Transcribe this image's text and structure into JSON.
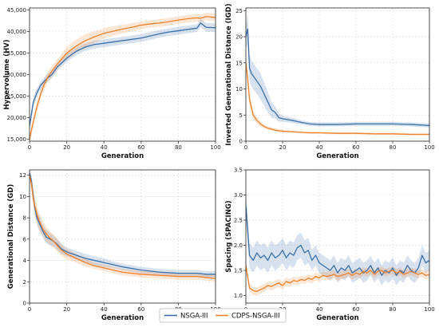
{
  "legend": {
    "placement": "bottom-center",
    "entries": [
      {
        "name": "NSGA-III",
        "color": "#3a6fa8"
      },
      {
        "name": "CDPS-NSGA-III",
        "color": "#f0822c"
      }
    ]
  },
  "chart_data": [
    {
      "id": "hv",
      "type": "line",
      "title": "",
      "xlabel": "Generation",
      "ylabel": "Hypervolume (HV)",
      "xlim": [
        0,
        100
      ],
      "ylim": [
        14500,
        45500
      ],
      "xticks": [
        0,
        20,
        40,
        60,
        80,
        100
      ],
      "yticks": [
        15000,
        20000,
        25000,
        30000,
        35000,
        40000,
        45000
      ],
      "ytick_labels": [
        "15,000",
        "20,000",
        "25,000",
        "30,000",
        "35,000",
        "40,000",
        "45,000"
      ],
      "grid": true,
      "x": [
        0,
        2,
        4,
        6,
        8,
        10,
        12,
        15,
        18,
        20,
        25,
        30,
        35,
        40,
        45,
        50,
        55,
        60,
        65,
        70,
        75,
        80,
        85,
        90,
        92,
        95,
        100
      ],
      "series": [
        {
          "name": "NSGA-III",
          "color": "#3a6fa8",
          "values": [
            18000,
            23500,
            25800,
            27500,
            28500,
            29300,
            30000,
            31800,
            33000,
            33800,
            35400,
            36400,
            37000,
            37300,
            37600,
            37900,
            38200,
            38500,
            39000,
            39500,
            39900,
            40200,
            40500,
            40800,
            42000,
            41000,
            40900
          ],
          "band": [
            1200,
            1200,
            1000,
            900,
            900,
            900,
            900,
            900,
            900,
            900,
            900,
            900,
            900,
            900,
            900,
            900,
            900,
            900,
            900,
            900,
            900,
            900,
            900,
            900,
            1000,
            1000,
            1000
          ]
        },
        {
          "name": "CDPS-NSGA-III",
          "color": "#f0822c",
          "values": [
            15000,
            19000,
            22500,
            25500,
            27800,
            29500,
            30800,
            32500,
            34000,
            35000,
            36600,
            37900,
            38800,
            39600,
            40100,
            40600,
            41000,
            41500,
            41800,
            42000,
            42300,
            42700,
            43000,
            43200,
            43100,
            43500,
            43300
          ],
          "band": [
            1000,
            1200,
            1200,
            1200,
            1200,
            1200,
            1200,
            1200,
            1200,
            1500,
            1500,
            1500,
            1300,
            1200,
            1100,
            1000,
            1000,
            900,
            900,
            900,
            900,
            900,
            900,
            900,
            900,
            900,
            900
          ]
        }
      ]
    },
    {
      "id": "igd",
      "type": "line",
      "title": "",
      "xlabel": "Generation",
      "ylabel": "Inverted Generational Distance (IGD)",
      "xlim": [
        0,
        100
      ],
      "ylim": [
        0,
        25.5
      ],
      "xticks": [
        0,
        20,
        40,
        60,
        80,
        100
      ],
      "yticks": [
        0,
        5,
        10,
        15,
        20,
        25
      ],
      "ytick_labels": [
        "0",
        "5",
        "10",
        "15",
        "20",
        "25"
      ],
      "grid": true,
      "x": [
        0,
        1,
        2,
        3,
        4,
        5,
        6,
        8,
        10,
        12,
        14,
        16,
        18,
        20,
        25,
        30,
        35,
        40,
        50,
        60,
        70,
        80,
        90,
        100
      ],
      "series": [
        {
          "name": "NSGA-III",
          "color": "#3a6fa8",
          "values": [
            20,
            21.5,
            14,
            13,
            12.5,
            12,
            11.5,
            10.5,
            9,
            7.5,
            6,
            5.5,
            4.5,
            4.3,
            4,
            3.6,
            3.3,
            3.2,
            3.2,
            3.3,
            3.3,
            3.3,
            3.2,
            3
          ],
          "band": [
            2,
            3,
            2.5,
            2.5,
            2.5,
            2.5,
            2.5,
            2.5,
            2.2,
            2,
            1.5,
            1.2,
            0.8,
            0.6,
            0.5,
            0.4,
            0.4,
            0.4,
            0.4,
            0.4,
            0.4,
            0.4,
            0.4,
            0.4
          ]
        },
        {
          "name": "CDPS-NSGA-III",
          "color": "#f0822c",
          "values": [
            15,
            12,
            8,
            6.5,
            5,
            4.5,
            4,
            3.3,
            2.8,
            2.5,
            2.3,
            2.1,
            2,
            1.9,
            1.8,
            1.7,
            1.6,
            1.6,
            1.5,
            1.5,
            1.4,
            1.4,
            1.3,
            1.3
          ],
          "band": [
            1.5,
            1.5,
            1.2,
            1,
            0.8,
            0.7,
            0.6,
            0.5,
            0.4,
            0.3,
            0.3,
            0.3,
            0.3,
            0.3,
            0.2,
            0.2,
            0.2,
            0.2,
            0.2,
            0.2,
            0.2,
            0.2,
            0.2,
            0.2
          ]
        }
      ]
    },
    {
      "id": "gd",
      "type": "line",
      "title": "",
      "xlabel": "Generation",
      "ylabel": "Generational Distance (GD)",
      "xlim": [
        0,
        100
      ],
      "ylim": [
        0,
        12.5
      ],
      "xticks": [
        0,
        20,
        40,
        60,
        80,
        100
      ],
      "yticks": [
        0,
        2,
        4,
        6,
        8,
        10,
        12
      ],
      "ytick_labels": [
        "0",
        "2",
        "4",
        "6",
        "8",
        "10",
        "12"
      ],
      "grid": true,
      "x": [
        0,
        1,
        2,
        3,
        4,
        5,
        7,
        9,
        11,
        13,
        15,
        17,
        20,
        25,
        30,
        35,
        40,
        45,
        50,
        60,
        70,
        80,
        90,
        95,
        100
      ],
      "series": [
        {
          "name": "NSGA-III",
          "color": "#3a6fa8",
          "values": [
            12.2,
            11.5,
            10,
            8.8,
            8,
            7.6,
            6.8,
            6.2,
            6,
            5.8,
            5.5,
            5.1,
            4.8,
            4.5,
            4.2,
            4,
            3.8,
            3.6,
            3.4,
            3.1,
            2.9,
            2.8,
            2.8,
            2.7,
            2.7
          ],
          "band": [
            0.4,
            0.6,
            0.7,
            0.7,
            0.7,
            0.7,
            0.6,
            0.6,
            0.6,
            0.5,
            0.5,
            0.5,
            0.4,
            0.4,
            0.4,
            0.4,
            0.4,
            0.3,
            0.3,
            0.3,
            0.3,
            0.3,
            0.3,
            0.3,
            0.3
          ]
        },
        {
          "name": "CDPS-NSGA-III",
          "color": "#f0822c",
          "values": [
            12,
            11.2,
            9.8,
            9,
            8.3,
            7.8,
            7,
            6.5,
            6.1,
            5.8,
            5.4,
            5,
            4.6,
            4.2,
            3.8,
            3.5,
            3.3,
            3.1,
            2.9,
            2.7,
            2.6,
            2.5,
            2.5,
            2.4,
            2.3
          ],
          "band": [
            0.4,
            0.7,
            0.8,
            0.8,
            0.8,
            0.8,
            0.7,
            0.7,
            0.6,
            0.6,
            0.6,
            0.5,
            0.5,
            0.4,
            0.4,
            0.3,
            0.3,
            0.3,
            0.3,
            0.3,
            0.3,
            0.3,
            0.3,
            0.3,
            0.3
          ]
        }
      ]
    },
    {
      "id": "spacing",
      "type": "line",
      "title": "",
      "xlabel": "Generation",
      "ylabel": "Spacing (SPACING)",
      "xlim": [
        0,
        100
      ],
      "ylim": [
        0.85,
        3.5
      ],
      "xticks": [
        0,
        20,
        40,
        60,
        80,
        100
      ],
      "yticks": [
        1.0,
        1.5,
        2.0,
        2.5,
        3.0,
        3.5
      ],
      "ytick_labels": [
        "1.0",
        "1.5",
        "2.0",
        "2.5",
        "3.0",
        "3.5"
      ],
      "grid": true,
      "x": [
        0,
        2,
        4,
        6,
        8,
        10,
        12,
        14,
        16,
        18,
        20,
        22,
        24,
        26,
        28,
        30,
        32,
        34,
        36,
        38,
        40,
        42,
        44,
        46,
        48,
        50,
        52,
        54,
        56,
        58,
        60,
        62,
        64,
        66,
        68,
        70,
        72,
        74,
        76,
        78,
        80,
        82,
        84,
        86,
        88,
        90,
        92,
        94,
        96,
        98,
        100
      ],
      "series": [
        {
          "name": "NSGA-III",
          "color": "#3a6fa8",
          "values": [
            2.8,
            1.8,
            1.7,
            1.85,
            1.75,
            1.8,
            1.7,
            1.85,
            1.75,
            1.8,
            1.9,
            1.75,
            1.85,
            1.8,
            1.95,
            2.0,
            1.85,
            1.9,
            1.7,
            1.8,
            1.65,
            1.6,
            1.55,
            1.5,
            1.6,
            1.45,
            1.55,
            1.5,
            1.6,
            1.45,
            1.5,
            1.55,
            1.45,
            1.5,
            1.6,
            1.45,
            1.55,
            1.4,
            1.5,
            1.45,
            1.55,
            1.4,
            1.5,
            1.45,
            1.6,
            1.5,
            1.45,
            1.55,
            1.8,
            1.65,
            1.7
          ],
          "band": [
            0.3,
            0.25,
            0.25,
            0.25,
            0.25,
            0.25,
            0.25,
            0.25,
            0.25,
            0.25,
            0.25,
            0.25,
            0.25,
            0.25,
            0.25,
            0.25,
            0.25,
            0.25,
            0.2,
            0.2,
            0.2,
            0.2,
            0.2,
            0.2,
            0.2,
            0.2,
            0.2,
            0.2,
            0.2,
            0.2,
            0.2,
            0.2,
            0.2,
            0.2,
            0.2,
            0.2,
            0.2,
            0.2,
            0.2,
            0.2,
            0.2,
            0.2,
            0.2,
            0.2,
            0.2,
            0.2,
            0.2,
            0.2,
            0.2,
            0.2,
            0.2
          ]
        },
        {
          "name": "CDPS-NSGA-III",
          "color": "#f0822c",
          "values": [
            1.6,
            1.15,
            1.1,
            1.08,
            1.12,
            1.15,
            1.2,
            1.18,
            1.22,
            1.25,
            1.2,
            1.28,
            1.25,
            1.3,
            1.28,
            1.32,
            1.3,
            1.35,
            1.32,
            1.38,
            1.35,
            1.4,
            1.38,
            1.4,
            1.42,
            1.38,
            1.4,
            1.42,
            1.45,
            1.4,
            1.45,
            1.42,
            1.48,
            1.45,
            1.5,
            1.42,
            1.48,
            1.5,
            1.45,
            1.48,
            1.5,
            1.45,
            1.48,
            1.42,
            1.45,
            1.48,
            1.45,
            1.42,
            1.45,
            1.4,
            1.42
          ],
          "band": [
            0.1,
            0.08,
            0.08,
            0.08,
            0.08,
            0.08,
            0.08,
            0.08,
            0.08,
            0.08,
            0.08,
            0.08,
            0.08,
            0.08,
            0.08,
            0.08,
            0.08,
            0.08,
            0.08,
            0.08,
            0.08,
            0.08,
            0.08,
            0.08,
            0.08,
            0.08,
            0.08,
            0.08,
            0.08,
            0.08,
            0.08,
            0.08,
            0.08,
            0.08,
            0.08,
            0.08,
            0.08,
            0.08,
            0.08,
            0.08,
            0.08,
            0.08,
            0.08,
            0.08,
            0.08,
            0.08,
            0.08,
            0.08,
            0.08,
            0.08,
            0.08
          ]
        }
      ]
    }
  ]
}
